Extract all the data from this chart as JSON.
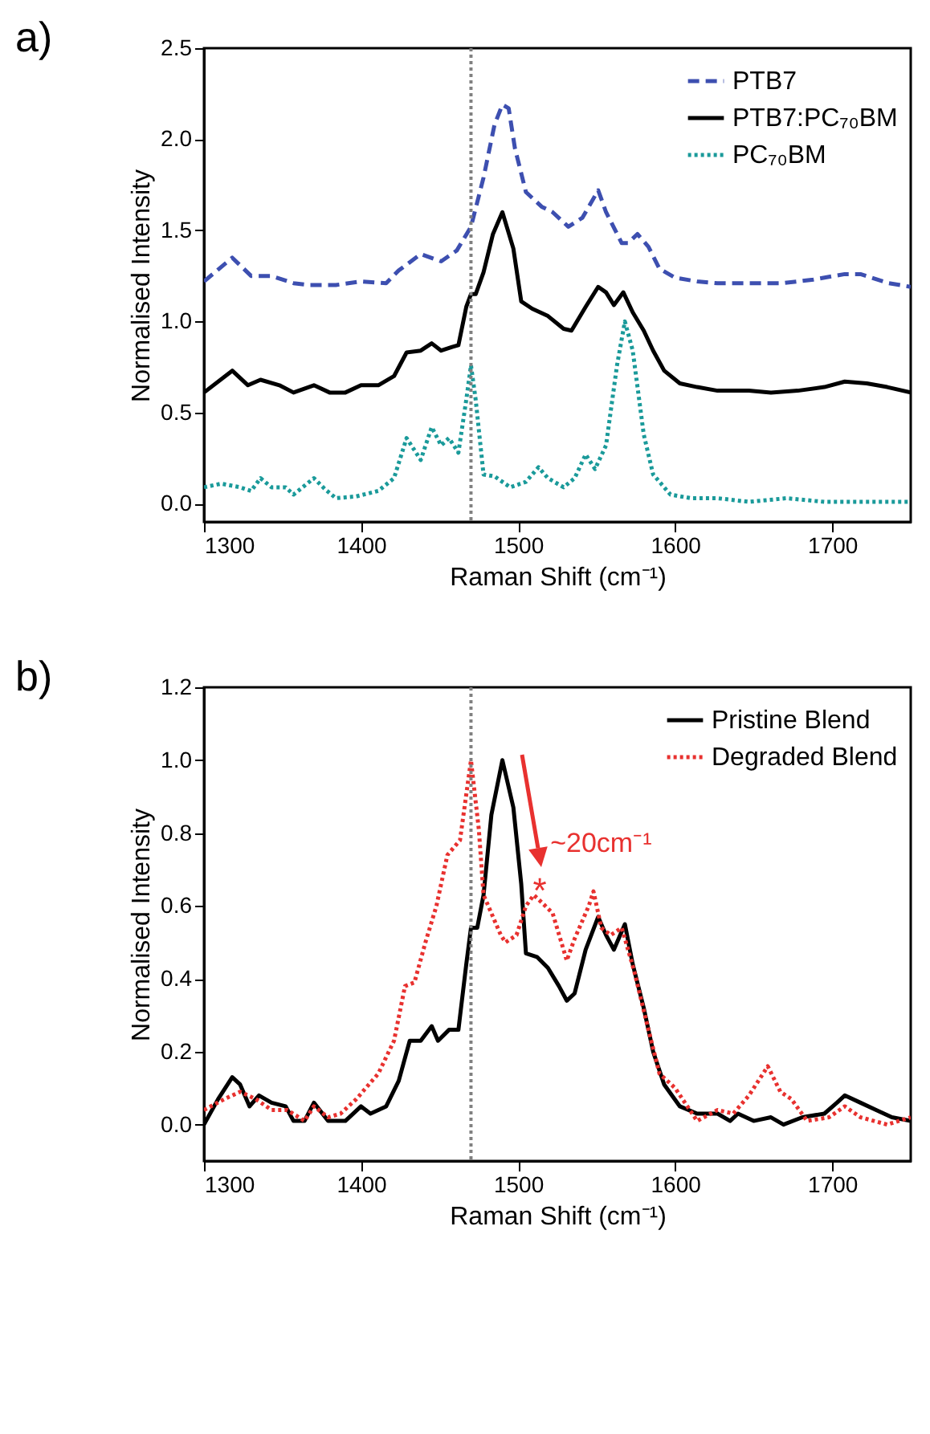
{
  "chart_data": [
    {
      "type": "line",
      "title": "a)",
      "xlabel": "Raman Shift (cm⁻¹)",
      "ylabel": "Normalised Intensity",
      "xlim": [
        1300,
        1750
      ],
      "ylim": [
        -0.1,
        2.5
      ],
      "xticks": [
        1300,
        1400,
        1500,
        1600,
        1700
      ],
      "yticks": [
        {
          "value": 0,
          "label": "0.0"
        },
        0.5,
        {
          "value": 1,
          "label": "1.0"
        },
        1.5,
        {
          "value": 2,
          "label": "2.0"
        },
        2.5
      ],
      "legend": "top right",
      "ref_lines": [
        {
          "axis": "x",
          "value": 1470,
          "color": "#808080",
          "line_style": "dotted"
        }
      ],
      "series": [
        {
          "name": "PTB7",
          "color": "#3d4fb0",
          "line_style": "dashed",
          "x": [
            1300,
            1318,
            1330,
            1343,
            1357,
            1367,
            1384,
            1400,
            1416,
            1424,
            1438,
            1451,
            1461,
            1470,
            1478,
            1485,
            1490,
            1494,
            1498,
            1505,
            1515,
            1522,
            1532,
            1541,
            1551,
            1556,
            1566,
            1570,
            1576,
            1583,
            1590,
            1600,
            1614,
            1627,
            1647,
            1668,
            1688,
            1708,
            1718,
            1736,
            1750
          ],
          "values": [
            1.22,
            1.35,
            1.25,
            1.25,
            1.21,
            1.2,
            1.2,
            1.22,
            1.21,
            1.28,
            1.37,
            1.33,
            1.39,
            1.52,
            1.79,
            2.08,
            2.19,
            2.17,
            1.95,
            1.71,
            1.63,
            1.6,
            1.52,
            1.57,
            1.72,
            1.6,
            1.43,
            1.43,
            1.48,
            1.41,
            1.29,
            1.24,
            1.22,
            1.21,
            1.21,
            1.21,
            1.23,
            1.26,
            1.26,
            1.21,
            1.19
          ]
        },
        {
          "name": "PTB7:PC₇₀BM",
          "color": "#000000",
          "line_style": "solid",
          "x": [
            1300,
            1318,
            1328,
            1336,
            1348,
            1357,
            1370,
            1380,
            1390,
            1400,
            1411,
            1421,
            1429,
            1438,
            1445,
            1451,
            1458,
            1462,
            1467,
            1470,
            1473,
            1478,
            1484,
            1490,
            1497,
            1502,
            1509,
            1519,
            1529,
            1534,
            1543,
            1551,
            1556,
            1561,
            1567,
            1573,
            1580,
            1586,
            1593,
            1603,
            1614,
            1627,
            1647,
            1661,
            1678,
            1695,
            1708,
            1722,
            1735,
            1750
          ],
          "values": [
            0.61,
            0.73,
            0.65,
            0.68,
            0.65,
            0.61,
            0.65,
            0.61,
            0.61,
            0.65,
            0.65,
            0.7,
            0.83,
            0.84,
            0.88,
            0.84,
            0.86,
            0.87,
            1.08,
            1.15,
            1.15,
            1.27,
            1.48,
            1.6,
            1.4,
            1.11,
            1.07,
            1.03,
            0.96,
            0.95,
            1.08,
            1.19,
            1.16,
            1.09,
            1.16,
            1.05,
            0.95,
            0.84,
            0.73,
            0.66,
            0.64,
            0.62,
            0.62,
            0.61,
            0.62,
            0.64,
            0.67,
            0.66,
            0.64,
            0.61
          ]
        },
        {
          "name": "PC₇₀BM",
          "color": "#1a9a9a",
          "line_style": "dotted",
          "x": [
            1300,
            1311,
            1323,
            1330,
            1336,
            1343,
            1352,
            1357,
            1370,
            1377,
            1384,
            1397,
            1411,
            1421,
            1429,
            1438,
            1445,
            1451,
            1456,
            1462,
            1467,
            1470,
            1473,
            1478,
            1485,
            1495,
            1505,
            1513,
            1519,
            1529,
            1536,
            1543,
            1549,
            1556,
            1563,
            1568,
            1573,
            1580,
            1586,
            1597,
            1610,
            1627,
            1647,
            1671,
            1695,
            1722,
            1750
          ],
          "values": [
            0.09,
            0.11,
            0.09,
            0.07,
            0.14,
            0.09,
            0.09,
            0.05,
            0.14,
            0.08,
            0.03,
            0.04,
            0.07,
            0.14,
            0.36,
            0.24,
            0.42,
            0.32,
            0.36,
            0.28,
            0.57,
            0.76,
            0.57,
            0.16,
            0.15,
            0.09,
            0.12,
            0.2,
            0.14,
            0.09,
            0.14,
            0.27,
            0.19,
            0.32,
            0.76,
            1.0,
            0.84,
            0.38,
            0.16,
            0.05,
            0.03,
            0.03,
            0.01,
            0.03,
            0.01,
            0.01,
            0.01
          ]
        }
      ]
    },
    {
      "type": "line",
      "title": "b)",
      "xlabel": "Raman Shift (cm⁻¹)",
      "ylabel": "Normalised Intensity",
      "xlim": [
        1300,
        1750
      ],
      "ylim": [
        -0.1,
        1.2
      ],
      "xticks": [
        1300,
        1400,
        1500,
        1600,
        1700
      ],
      "yticks": [
        {
          "value": 0,
          "label": "0.0"
        },
        0.2,
        0.4,
        0.6,
        0.8,
        {
          "value": 1,
          "label": "1.0"
        },
        1.2
      ],
      "legend": "top right",
      "ref_lines": [
        {
          "axis": "x",
          "value": 1470,
          "color": "#808080",
          "line_style": "dotted"
        }
      ],
      "annotations": [
        "~20cm⁻¹",
        "*"
      ],
      "series": [
        {
          "name": "Pristine Blend",
          "color": "#000000",
          "line_style": "solid",
          "x": [
            1300,
            1309,
            1318,
            1323,
            1329,
            1335,
            1343,
            1352,
            1357,
            1364,
            1370,
            1379,
            1390,
            1400,
            1406,
            1416,
            1424,
            1431,
            1438,
            1445,
            1449,
            1456,
            1462,
            1467,
            1470,
            1474,
            1478,
            1483,
            1490,
            1497,
            1502,
            1505,
            1512,
            1519,
            1526,
            1531,
            1536,
            1543,
            1551,
            1556,
            1561,
            1568,
            1573,
            1580,
            1586,
            1593,
            1603,
            1614,
            1627,
            1635,
            1640,
            1650,
            1661,
            1669,
            1681,
            1695,
            1703,
            1708,
            1718,
            1728,
            1738,
            1750
          ],
          "values": [
            0.0,
            0.07,
            0.13,
            0.11,
            0.05,
            0.08,
            0.06,
            0.05,
            0.01,
            0.01,
            0.06,
            0.01,
            0.01,
            0.05,
            0.03,
            0.05,
            0.12,
            0.23,
            0.23,
            0.27,
            0.23,
            0.26,
            0.26,
            0.44,
            0.54,
            0.54,
            0.63,
            0.85,
            1.0,
            0.87,
            0.66,
            0.47,
            0.46,
            0.43,
            0.38,
            0.34,
            0.36,
            0.48,
            0.57,
            0.52,
            0.48,
            0.55,
            0.44,
            0.32,
            0.2,
            0.11,
            0.05,
            0.03,
            0.03,
            0.01,
            0.03,
            0.01,
            0.02,
            0.0,
            0.02,
            0.03,
            0.06,
            0.08,
            0.06,
            0.04,
            0.02,
            0.01
          ]
        },
        {
          "name": "Degraded Blend",
          "color": "#e8312f",
          "line_style": "dotted",
          "x": [
            1300,
            1313,
            1323,
            1333,
            1343,
            1353,
            1364,
            1370,
            1379,
            1387,
            1397,
            1411,
            1421,
            1428,
            1434,
            1441,
            1448,
            1455,
            1463,
            1470,
            1475,
            1478,
            1489,
            1492,
            1499,
            1505,
            1510,
            1515,
            1522,
            1531,
            1536,
            1545,
            1548,
            1553,
            1559,
            1566,
            1574,
            1583,
            1590,
            1600,
            1614,
            1627,
            1637,
            1647,
            1659,
            1667,
            1674,
            1684,
            1698,
            1708,
            1718,
            1735,
            1750
          ],
          "values": [
            0.04,
            0.07,
            0.09,
            0.07,
            0.04,
            0.04,
            0.01,
            0.05,
            0.02,
            0.03,
            0.07,
            0.14,
            0.23,
            0.38,
            0.39,
            0.5,
            0.6,
            0.74,
            0.78,
            1.0,
            0.81,
            0.63,
            0.52,
            0.5,
            0.52,
            0.6,
            0.63,
            0.61,
            0.58,
            0.45,
            0.51,
            0.6,
            0.64,
            0.54,
            0.52,
            0.54,
            0.42,
            0.26,
            0.14,
            0.1,
            0.01,
            0.04,
            0.03,
            0.08,
            0.16,
            0.09,
            0.07,
            0.01,
            0.02,
            0.05,
            0.02,
            0.0,
            0.02
          ]
        }
      ]
    }
  ]
}
